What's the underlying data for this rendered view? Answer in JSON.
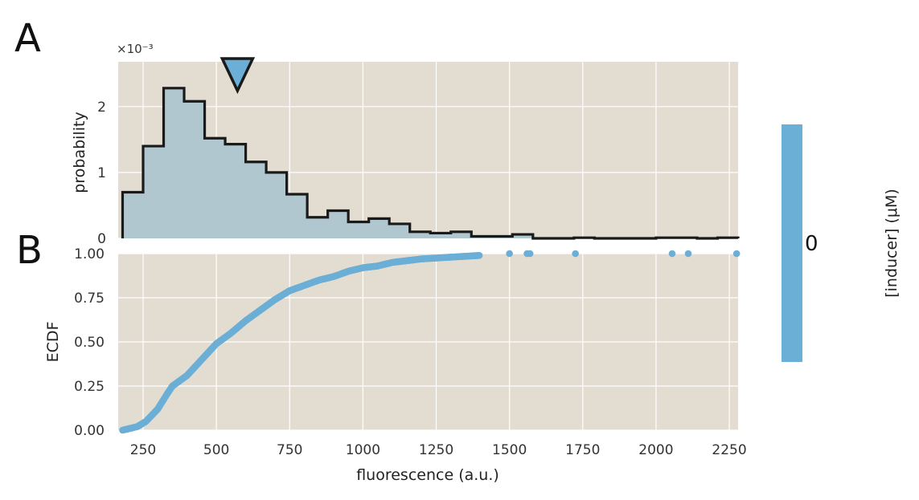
{
  "panels": {
    "a": "A",
    "b": "B"
  },
  "colors": {
    "background": "#e3ddd1",
    "grid": "#ffffff",
    "hist_fill": "#b1c7cf",
    "hist_line": "#1a1a1a",
    "marker": "#6baed6",
    "colorbar": "#6baed6"
  },
  "chart_data": [
    {
      "type": "histogram",
      "ylabel": "probability",
      "scale_label": "×10⁻³",
      "xlim": [
        165,
        2280
      ],
      "ylim": [
        0,
        0.00268
      ],
      "yticks": [
        0,
        0.001,
        0.002
      ],
      "ytick_labels": [
        "0",
        "1",
        "2"
      ],
      "xticks": [
        250,
        500,
        750,
        1000,
        1250,
        1500,
        1750,
        2000,
        2250
      ],
      "edges": [
        180,
        250,
        320,
        390,
        460,
        530,
        600,
        670,
        740,
        810,
        880,
        950,
        1020,
        1090,
        1160,
        1230,
        1300,
        1370,
        1440,
        1510,
        1580,
        1650,
        1720,
        1790,
        1860,
        1930,
        2000,
        2070,
        2140,
        2210,
        2280
      ],
      "values": [
        0.0007,
        0.0014,
        0.00228,
        0.00208,
        0.00152,
        0.00143,
        0.00116,
        0.001,
        0.00067,
        0.00032,
        0.00042,
        0.00025,
        0.0003,
        0.00022,
        0.0001,
        8e-05,
        0.0001,
        3e-05,
        3e-05,
        6e-05,
        0,
        0,
        1e-05,
        0,
        0,
        0,
        1e-05,
        1e-05,
        0,
        1e-05
      ],
      "mean_marker_x": 572,
      "grid": true
    },
    {
      "type": "scatter",
      "xlabel": "fluorescence (a.u.)",
      "ylabel": "ECDF",
      "xlim": [
        165,
        2280
      ],
      "ylim": [
        0,
        1
      ],
      "xticks": [
        250,
        500,
        750,
        1000,
        1250,
        1500,
        1750,
        2000,
        2250
      ],
      "yticks": [
        0,
        0.25,
        0.5,
        0.75,
        1
      ],
      "ytick_labels": [
        "0.00",
        "0.25",
        "0.50",
        "0.75",
        "1.00"
      ],
      "xtick_labels": [
        "250",
        "500",
        "750",
        "1000",
        "1250",
        "1500",
        "1750",
        "2000",
        "2250"
      ],
      "curve": [
        [
          180,
          0
        ],
        [
          230,
          0.02
        ],
        [
          260,
          0.05
        ],
        [
          300,
          0.12
        ],
        [
          330,
          0.2
        ],
        [
          350,
          0.25
        ],
        [
          400,
          0.31
        ],
        [
          450,
          0.4
        ],
        [
          500,
          0.49
        ],
        [
          550,
          0.55
        ],
        [
          600,
          0.62
        ],
        [
          650,
          0.68
        ],
        [
          700,
          0.74
        ],
        [
          750,
          0.79
        ],
        [
          800,
          0.82
        ],
        [
          850,
          0.85
        ],
        [
          900,
          0.87
        ],
        [
          950,
          0.9
        ],
        [
          1000,
          0.92
        ],
        [
          1050,
          0.93
        ],
        [
          1100,
          0.95
        ],
        [
          1150,
          0.96
        ],
        [
          1200,
          0.97
        ],
        [
          1300,
          0.98
        ],
        [
          1400,
          0.99
        ]
      ],
      "outliers": [
        1500,
        1560,
        1570,
        1725,
        2055,
        2110,
        2275
      ],
      "grid": true
    }
  ],
  "colorbar": {
    "tick": "0",
    "label": "[inducer] (μM)"
  }
}
